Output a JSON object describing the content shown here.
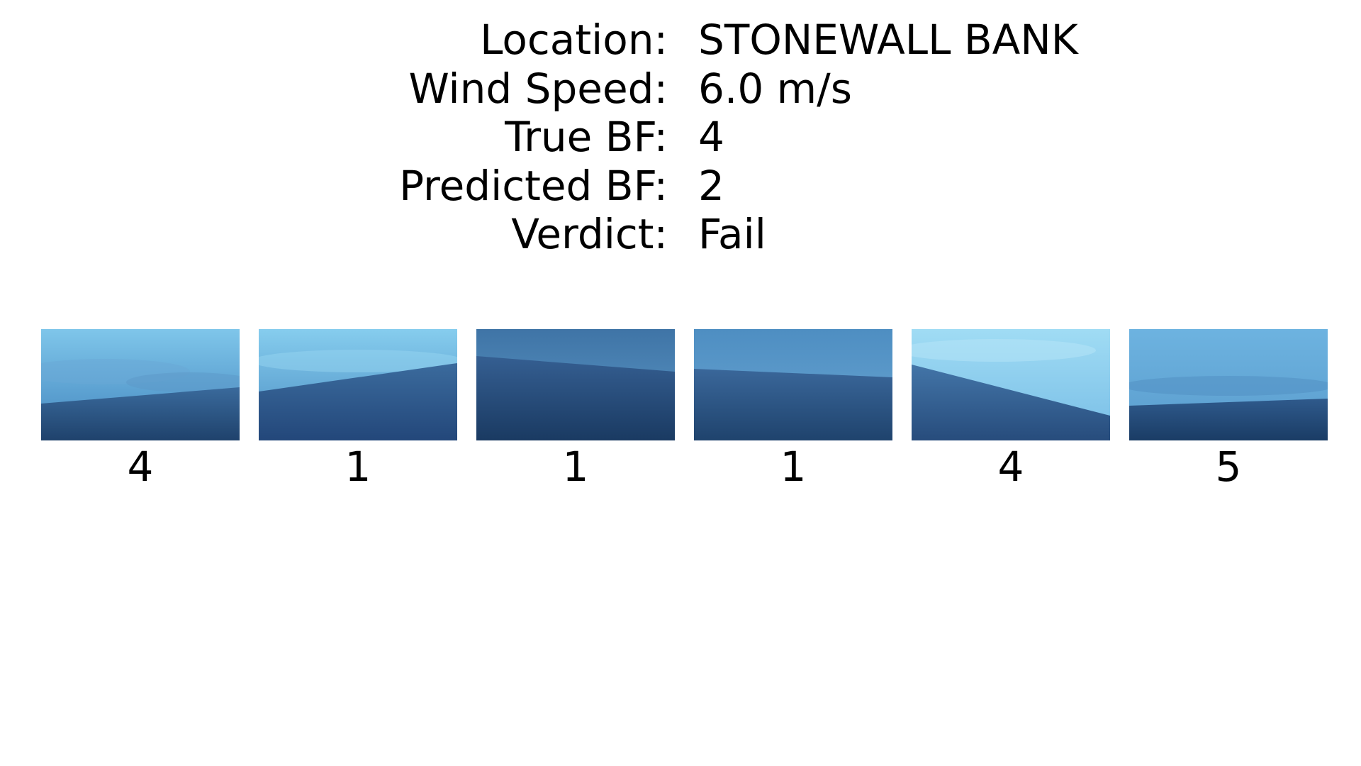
{
  "info": {
    "rows": [
      {
        "label": "Location:",
        "value": "STONEWALL BANK"
      },
      {
        "label": "Wind Speed:",
        "value": "6.0 m/s"
      },
      {
        "label": "True BF:",
        "value": "4"
      },
      {
        "label": "Predicted BF:",
        "value": "2"
      },
      {
        "label": "Verdict:",
        "value": "Fail"
      }
    ]
  },
  "tiles": [
    {
      "label": "4"
    },
    {
      "label": "1"
    },
    {
      "label": "1"
    },
    {
      "label": "1"
    },
    {
      "label": "4"
    },
    {
      "label": "5"
    }
  ],
  "colors": {
    "sky_light": "#8fd0ee",
    "sky_mid": "#5ea6d4",
    "sky_dark": "#3f7fb0",
    "sea_light": "#3f6ea0",
    "sea_mid": "#2e5a8a",
    "sea_dark": "#1d3f66"
  }
}
